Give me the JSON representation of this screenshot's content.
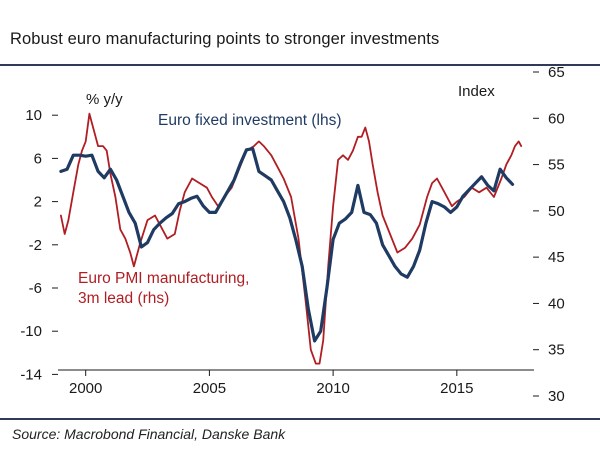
{
  "title": "Robust euro manufacturing points to stronger investments",
  "source": "Source: Macrobond Financial, Danske Bank",
  "colors": {
    "investment": "#1f3b63",
    "pmi": "#b01e23",
    "rule": "#2f3b57"
  },
  "chart_data": {
    "type": "line",
    "xlim": [
      1998.8,
      2018.2
    ],
    "x_ticks": [
      2000,
      2005,
      2010,
      2015
    ],
    "x_tick_labels": [
      "2000",
      "2005",
      "2010",
      "2015"
    ],
    "left_axis": {
      "label": "% y/y",
      "range": [
        -16,
        14
      ],
      "ticks": [
        10,
        6,
        2,
        -2,
        -6,
        -10,
        -14
      ],
      "tick_labels": [
        "10",
        "6",
        "2",
        "-2",
        "-6",
        "-10",
        "-14"
      ]
    },
    "right_axis": {
      "label": "Index",
      "range": [
        30,
        65
      ],
      "ticks": [
        65,
        60,
        55,
        50,
        45,
        40,
        35,
        30
      ],
      "tick_labels": [
        "65",
        "60",
        "55",
        "50",
        "45",
        "40",
        "35",
        "30"
      ]
    },
    "series": [
      {
        "name": "Euro fixed investment (lhs)",
        "label_lines": [
          "Euro fixed investment (lhs)"
        ],
        "axis": "left",
        "color": "#1f3b63",
        "x": [
          1999.0,
          1999.25,
          1999.5,
          1999.75,
          2000.0,
          2000.25,
          2000.5,
          2000.75,
          2001.0,
          2001.25,
          2001.5,
          2001.75,
          2002.0,
          2002.25,
          2002.5,
          2002.75,
          2003.0,
          2003.25,
          2003.5,
          2003.75,
          2004.0,
          2004.25,
          2004.5,
          2004.75,
          2005.0,
          2005.25,
          2005.5,
          2005.75,
          2006.0,
          2006.25,
          2006.5,
          2006.75,
          2007.0,
          2007.25,
          2007.5,
          2007.75,
          2008.0,
          2008.25,
          2008.5,
          2008.75,
          2009.0,
          2009.25,
          2009.5,
          2009.75,
          2010.0,
          2010.25,
          2010.5,
          2010.75,
          2011.0,
          2011.25,
          2011.5,
          2011.75,
          2012.0,
          2012.25,
          2012.5,
          2012.75,
          2013.0,
          2013.25,
          2013.5,
          2013.75,
          2014.0,
          2014.25,
          2014.5,
          2014.75,
          2015.0,
          2015.25,
          2015.5,
          2015.75,
          2016.0,
          2016.25,
          2016.5,
          2016.75,
          2017.0,
          2017.25
        ],
        "values": [
          4.8,
          5.0,
          6.3,
          6.3,
          6.2,
          6.3,
          4.8,
          4.2,
          5.0,
          4.0,
          2.5,
          1.0,
          0.0,
          -2.2,
          -1.8,
          -0.6,
          0.0,
          0.5,
          0.9,
          1.8,
          2.0,
          2.3,
          2.5,
          1.6,
          1.0,
          1.0,
          2.0,
          3.0,
          4.0,
          5.5,
          6.8,
          6.9,
          4.8,
          4.4,
          4.0,
          3.0,
          2.0,
          0.5,
          -1.6,
          -4.0,
          -8.0,
          -10.9,
          -10.0,
          -6.0,
          -1.5,
          0.0,
          0.4,
          1.0,
          3.5,
          1.0,
          0.8,
          0.0,
          -2.0,
          -3.0,
          -4.0,
          -4.7,
          -5.0,
          -4.0,
          -2.5,
          0.0,
          2.0,
          1.8,
          1.5,
          1.0,
          1.5,
          2.5,
          3.1,
          3.7,
          4.3,
          3.5,
          3.0,
          5.0,
          4.2,
          3.6
        ]
      },
      {
        "name": "Euro PMI manufacturing, 3m lead (rhs)",
        "label_lines": [
          "Euro PMI manufacturing,",
          "3m lead (rhs)"
        ],
        "axis": "right",
        "color": "#b01e23",
        "x": [
          1999.0,
          1999.15,
          1999.3,
          1999.5,
          1999.7,
          1999.85,
          2000.0,
          2000.15,
          2000.3,
          2000.5,
          2000.7,
          2000.85,
          2001.0,
          2001.2,
          2001.4,
          2001.6,
          2001.8,
          2001.95,
          2002.2,
          2002.5,
          2002.8,
          2003.0,
          2003.3,
          2003.6,
          2003.8,
          2004.0,
          2004.3,
          2004.6,
          2004.9,
          2005.1,
          2005.35,
          2005.6,
          2005.9,
          2006.2,
          2006.5,
          2006.8,
          2007.0,
          2007.2,
          2007.5,
          2007.8,
          2008.0,
          2008.3,
          2008.6,
          2008.9,
          2009.1,
          2009.3,
          2009.45,
          2009.6,
          2009.8,
          2010.0,
          2010.2,
          2010.4,
          2010.6,
          2010.8,
          2011.0,
          2011.15,
          2011.3,
          2011.45,
          2011.6,
          2011.8,
          2012.0,
          2012.3,
          2012.6,
          2012.9,
          2013.2,
          2013.5,
          2013.8,
          2014.0,
          2014.2,
          2014.5,
          2014.8,
          2015.0,
          2015.3,
          2015.6,
          2015.9,
          2016.2,
          2016.5,
          2016.8,
          2017.0,
          2017.2,
          2017.35,
          2017.5,
          2017.6
        ],
        "values": [
          49.5,
          47.5,
          49.0,
          52.0,
          55.0,
          56.5,
          57.5,
          60.5,
          59.0,
          57.0,
          57.0,
          56.5,
          54.0,
          51.5,
          48.0,
          47.0,
          45.5,
          44.0,
          46.5,
          49.0,
          49.5,
          48.5,
          47.0,
          47.5,
          50.0,
          52.0,
          53.5,
          53.0,
          52.5,
          51.5,
          50.5,
          51.5,
          52.5,
          54.5,
          56.5,
          57.0,
          57.5,
          57.0,
          56.0,
          54.5,
          53.5,
          51.5,
          47.0,
          40.0,
          35.0,
          33.5,
          33.5,
          36.0,
          44.0,
          50.5,
          55.5,
          56.0,
          55.5,
          56.5,
          58.0,
          58.0,
          59.0,
          57.5,
          55.0,
          52.0,
          49.5,
          47.5,
          45.5,
          46.0,
          47.0,
          48.5,
          51.5,
          53.0,
          53.5,
          52.0,
          50.5,
          51.0,
          51.5,
          52.5,
          52.0,
          52.5,
          51.5,
          53.5,
          55.0,
          56.0,
          57.0,
          57.5,
          57.0
        ]
      }
    ]
  }
}
